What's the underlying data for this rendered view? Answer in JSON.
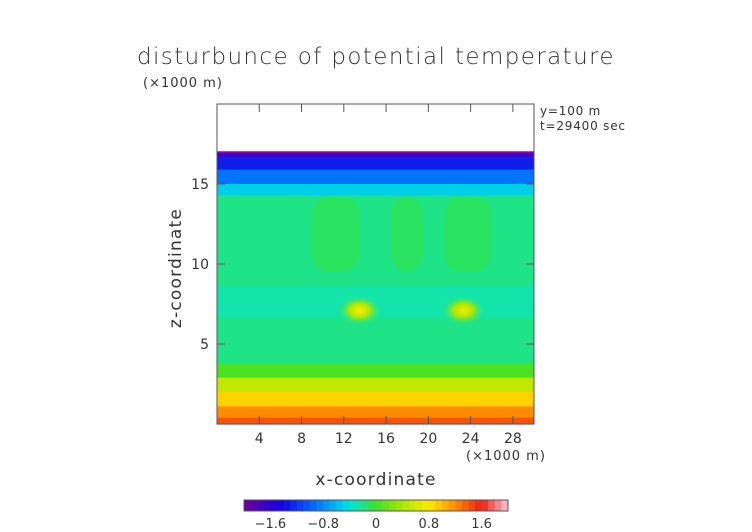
{
  "chart_data": {
    "type": "heatmap",
    "title": "disturbunce of potential temperature",
    "xlabel": "x-coordinate",
    "ylabel": "z-coordinate",
    "x_unit": "(×1000 m)",
    "y_unit": "(×1000 m)",
    "info": [
      "y=100 m",
      "t=29400 sec"
    ],
    "xlim": [
      0,
      30
    ],
    "ylim": [
      0,
      20
    ],
    "x_ticks": [
      4,
      8,
      12,
      16,
      20,
      24,
      28
    ],
    "y_ticks": [
      5,
      10,
      15
    ],
    "colorbar": {
      "range": [
        -2,
        2
      ],
      "tick_values": [
        -1.6,
        -0.8,
        0,
        0.8,
        1.6
      ],
      "tick_labels": [
        "−1.6",
        "−0.8",
        "0",
        "0.8",
        "1.6"
      ]
    },
    "field": {
      "data_top_z": 17,
      "layers": [
        {
          "z": [
            16.7,
            17.0
          ],
          "value": -1.7
        },
        {
          "z": [
            15.9,
            16.7
          ],
          "value": -1.3
        },
        {
          "z": [
            15.0,
            15.9
          ],
          "value": -0.9
        },
        {
          "z": [
            14.3,
            15.0
          ],
          "value": -0.5
        },
        {
          "z": [
            3.8,
            14.3
          ],
          "value": -0.2
        },
        {
          "z": [
            2.9,
            3.8
          ],
          "value": 0.05
        },
        {
          "z": [
            2.0,
            2.9
          ],
          "value": 0.5
        },
        {
          "z": [
            1.1,
            2.0
          ],
          "value": 0.9
        },
        {
          "z": [
            0.4,
            1.1
          ],
          "value": 1.2
        },
        {
          "z": [
            0.0,
            0.4
          ],
          "value": 1.4
        }
      ],
      "warm_anomalies": [
        {
          "x": 13.5,
          "z": 7.1,
          "value": 0.8
        },
        {
          "x": 23.3,
          "z": 7.1,
          "value": 0.75
        }
      ]
    }
  }
}
